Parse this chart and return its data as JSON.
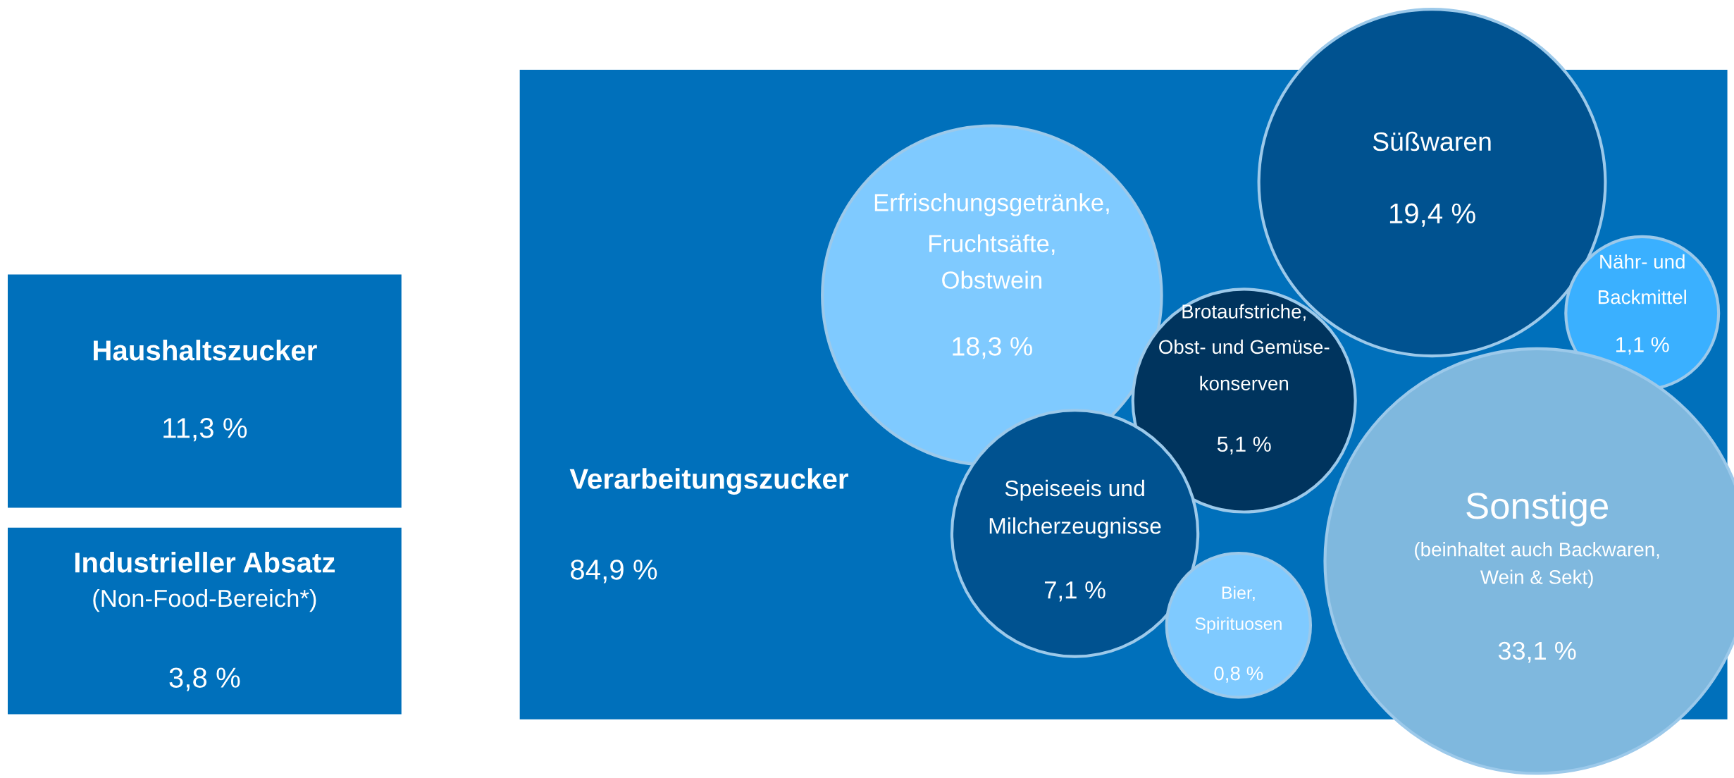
{
  "chart_data": [
    {
      "type": "other",
      "categories": [
        "Haushaltszucker",
        "Industrieller Absatz\n(Non-Food-Bereich*)",
        "Verarbeitungszucker"
      ],
      "values": [
        11.3,
        3.8,
        84.9
      ],
      "value_labels": [
        "11,3 %",
        "3,8 %",
        "84,9 %"
      ],
      "colors": [
        "#0070bb",
        "#0070bb",
        "#0070bb"
      ]
    },
    {
      "type": "other",
      "categories": [
        "Erfrischungsgetränke,\nFruchtsäfte,\nObstwein",
        "Süßwaren",
        "Nähr- und\nBackmittel",
        "Brotaufstriche,\nObst- und Gemüse-\nkonserven",
        "Speiseeis und\nMilcherzeugnisse",
        "Bier,\nSpirituosen",
        "Sonstige\n(beinhaltet auch Backwaren,\nWein & Sekt)"
      ],
      "values": [
        18.3,
        19.4,
        1.1,
        5.1,
        7.1,
        0.8,
        33.1
      ],
      "value_labels": [
        "18,3 %",
        "19,4 %",
        "1,1 %",
        "5,1 %",
        "7,1 %",
        "0,8 %",
        "33,1 %"
      ],
      "colors": [
        "#7fcaff",
        "#005290",
        "#3ab0ff",
        "#00345e",
        "#005290",
        "#7fcaff",
        "#7fb8de"
      ]
    }
  ]
}
